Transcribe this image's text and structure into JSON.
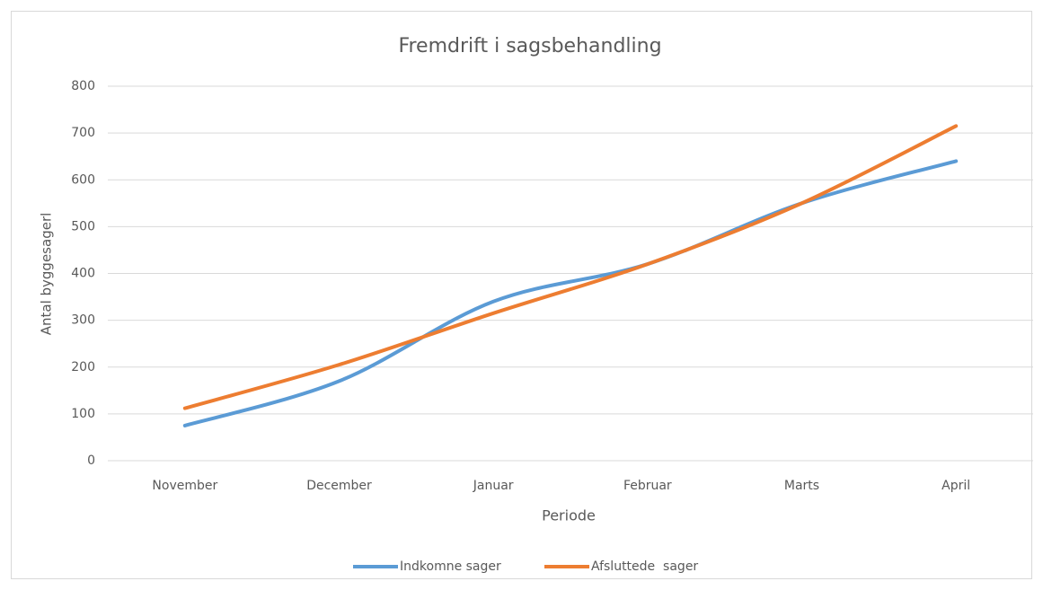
{
  "chart_data": {
    "type": "line",
    "title": "Fremdrift i sagsbehandling",
    "x_label": "Periode",
    "y_label": "Antal byggesagerl",
    "categories": [
      "November",
      "December",
      "Januar",
      "Februar",
      "Marts",
      "April"
    ],
    "series": [
      {
        "name": "Indkomne sager",
        "color": "#5b9bd5",
        "values": [
          75,
          170,
          340,
          420,
          550,
          640
        ]
      },
      {
        "name": "Afsluttede  sager",
        "color": "#ed7d31",
        "values": [
          112,
          205,
          315,
          420,
          550,
          715
        ]
      }
    ],
    "ylim": [
      0,
      800
    ],
    "yticks": [
      0,
      100,
      200,
      300,
      400,
      500,
      600,
      700,
      800
    ],
    "grid": true,
    "smooth": true,
    "legend": "bottom"
  }
}
